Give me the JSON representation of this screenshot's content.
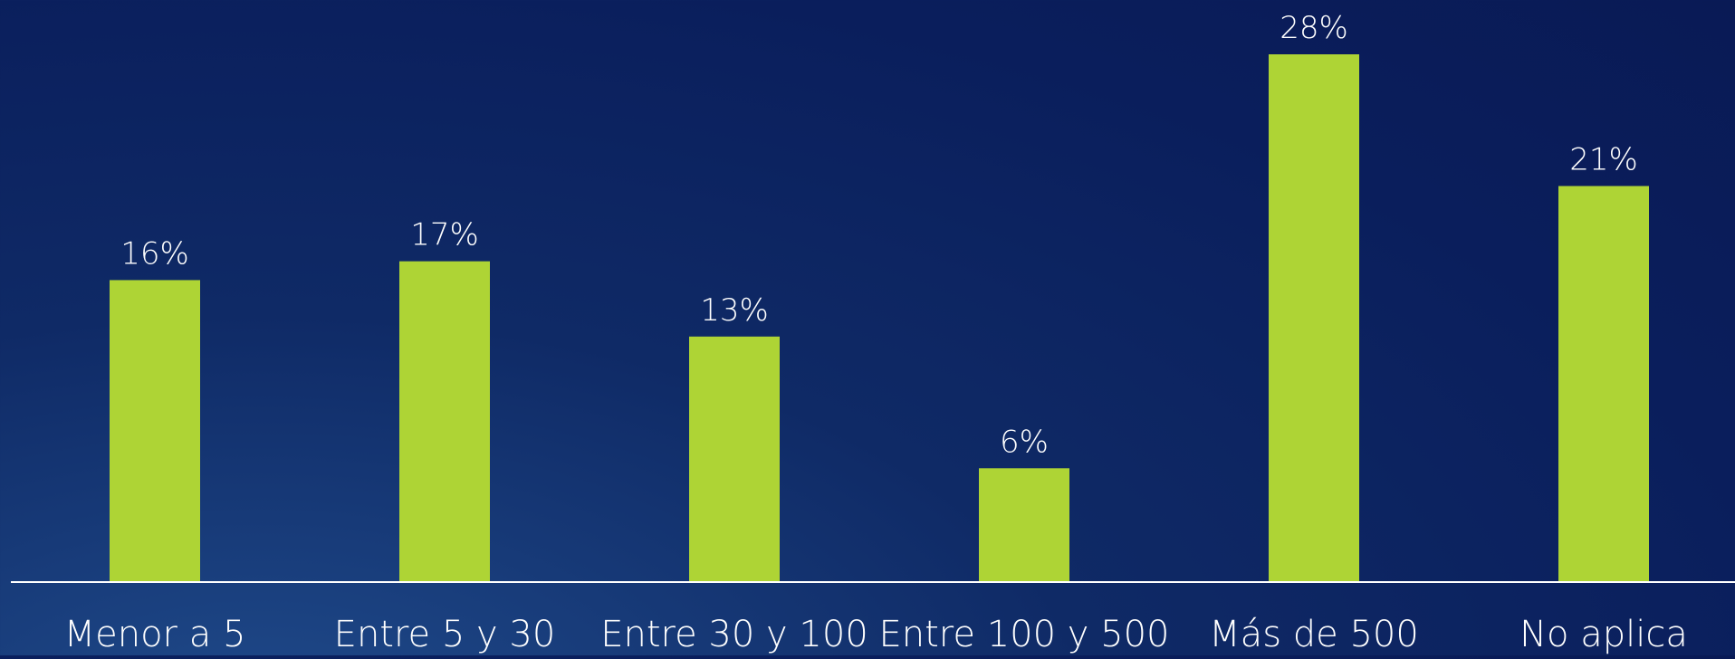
{
  "chart_data": {
    "type": "bar",
    "categories": [
      "Menor a 5",
      "Entre 5 y 30",
      "Entre 30 y 100",
      "Entre 100 y 500",
      "Más de 500",
      "No aplica"
    ],
    "values": [
      16,
      17,
      13,
      6,
      28,
      21
    ],
    "value_labels": [
      "16%",
      "17%",
      "13%",
      "6%",
      "28%",
      "21%"
    ],
    "unit": "%",
    "title": "",
    "xlabel": "",
    "ylabel": "",
    "ylim": [
      0,
      28
    ],
    "grid": false,
    "legend": "none",
    "colors": {
      "bar": "#aed435",
      "axis": "#ffffff",
      "text": "#ffffff"
    }
  }
}
